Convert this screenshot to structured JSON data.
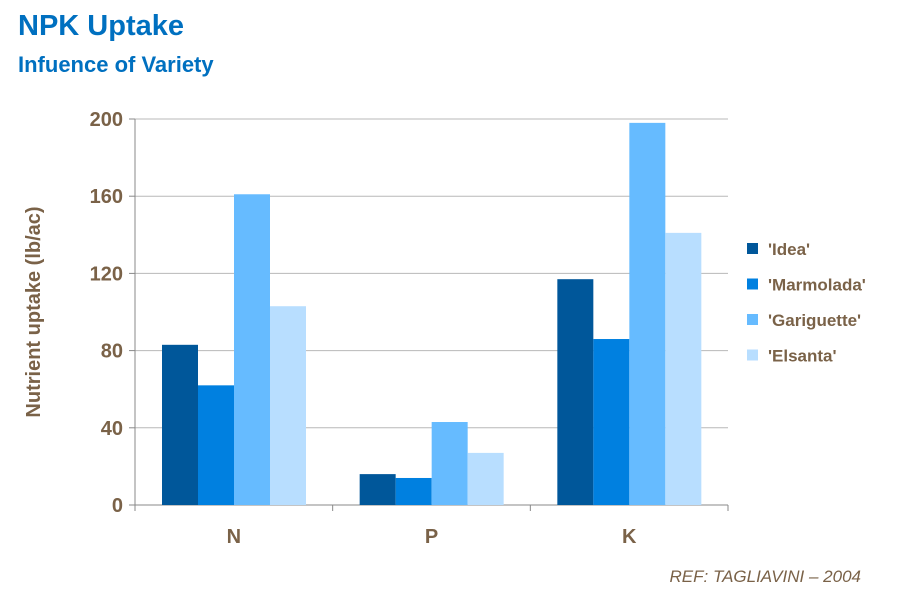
{
  "title": "NPK Uptake",
  "subtitle": "Infuence of Variety",
  "reference": "REF: TAGLIAVINI – 2004",
  "chart_data": {
    "type": "bar",
    "title": "NPK Uptake",
    "subtitle": "Infuence of Variety",
    "xlabel": "",
    "ylabel": "Nutrient uptake (lb/ac)",
    "ylim": [
      0,
      200
    ],
    "yticks": [
      0,
      40,
      80,
      120,
      160,
      200
    ],
    "categories": [
      "N",
      "P",
      "K"
    ],
    "grid": true,
    "legend_position": "right",
    "series": [
      {
        "name": "'Idea'",
        "color": "#00579A",
        "values": [
          83,
          16,
          117
        ]
      },
      {
        "name": "'Marmolada'",
        "color": "#0080E0",
        "values": [
          62,
          14,
          86
        ]
      },
      {
        "name": "'Gariguette'",
        "color": "#66BBFF",
        "values": [
          161,
          43,
          198
        ]
      },
      {
        "name": "'Elsanta'",
        "color": "#B8DEFF",
        "values": [
          103,
          27,
          141
        ]
      }
    ]
  }
}
